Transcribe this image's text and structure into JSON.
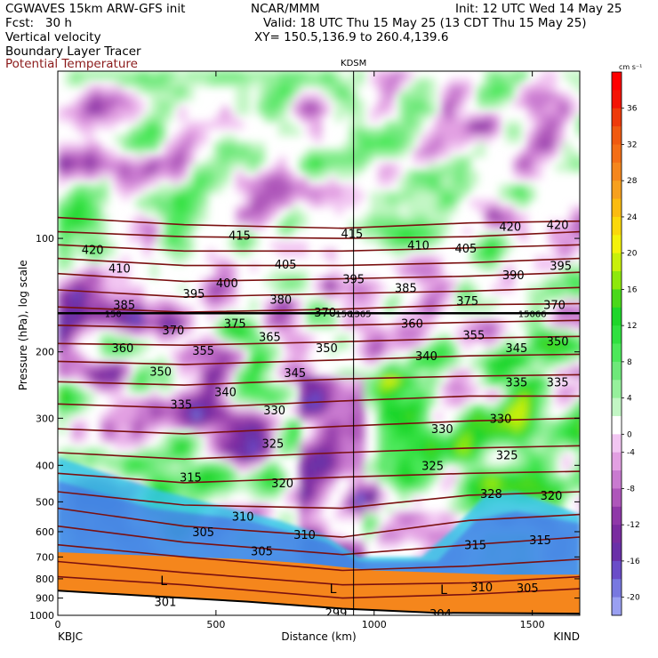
{
  "header": {
    "left1": "CGWAVES 15km ARW-GFS init",
    "center1": "NCAR/MMM",
    "right1": "Init: 12 UTC Wed 14 May 25",
    "left2": "Fcst:   30 h",
    "center2": "Valid: 18 UTC Thu 15 May 25 (13 CDT Thu 15 May 25)",
    "left3": "Vertical velocity",
    "center3": "XY= 150.5,136.9 to 260.4,139.6",
    "left4": "Boundary Layer Tracer",
    "left5": "Potential Temperature"
  },
  "chart_data": {
    "type": "heatmap",
    "title": "",
    "xlabel": "Distance (km)",
    "ylabel": "Pressure (hPa), log scale",
    "xlim": [
      0,
      1650
    ],
    "ylim": [
      1000,
      10
    ],
    "x_ticks": [
      0,
      500,
      1000,
      1500
    ],
    "y_ticks": [
      100,
      200,
      300,
      400,
      500,
      600,
      700,
      800,
      900,
      1000
    ],
    "x_end_labels": {
      "left": "KBJC",
      "right": "KIND"
    },
    "marker": {
      "label": "KDSM",
      "x": 935
    },
    "colorbar": {
      "units": "cm s⁻¹",
      "tick_labels": [
        "36",
        "32",
        "28",
        "24",
        "20",
        "16",
        "12",
        "8",
        "4",
        "0",
        "-4",
        "-8",
        "-12",
        "-16",
        "-20"
      ],
      "bins": [
        {
          "from": 40,
          "to": 38,
          "color": "#ff0000"
        },
        {
          "from": 38,
          "to": 36,
          "color": "#f41406"
        },
        {
          "from": 36,
          "to": 34,
          "color": "#ee3a0a"
        },
        {
          "from": 34,
          "to": 32,
          "color": "#f05a10"
        },
        {
          "from": 32,
          "to": 30,
          "color": "#f46e16"
        },
        {
          "from": 30,
          "to": 28,
          "color": "#f5861c"
        },
        {
          "from": 28,
          "to": 26,
          "color": "#f7a01e"
        },
        {
          "from": 26,
          "to": 24,
          "color": "#fbbb10"
        },
        {
          "from": 24,
          "to": 22,
          "color": "#fbd80a"
        },
        {
          "from": 22,
          "to": 20,
          "color": "#f4f20a"
        },
        {
          "from": 20,
          "to": 18,
          "color": "#c8f00a"
        },
        {
          "from": 18,
          "to": 16,
          "color": "#8ee80c"
        },
        {
          "from": 16,
          "to": 14,
          "color": "#4ad81a"
        },
        {
          "from": 14,
          "to": 12,
          "color": "#1ed62a"
        },
        {
          "from": 12,
          "to": 10,
          "color": "#30e040"
        },
        {
          "from": 10,
          "to": 8,
          "color": "#4ce85a"
        },
        {
          "from": 8,
          "to": 6,
          "color": "#6ee87a"
        },
        {
          "from": 6,
          "to": 4,
          "color": "#96f09c"
        },
        {
          "from": 4,
          "to": 2,
          "color": "#c2f6c4"
        },
        {
          "from": 2,
          "to": -2,
          "color": "#ffffff"
        },
        {
          "from": -2,
          "to": -4,
          "color": "#f2c6f2"
        },
        {
          "from": -4,
          "to": -6,
          "color": "#e2a0e2"
        },
        {
          "from": -6,
          "to": -8,
          "color": "#c97ad0"
        },
        {
          "from": -8,
          "to": -10,
          "color": "#ae56ba"
        },
        {
          "from": -10,
          "to": -12,
          "color": "#8f38a8"
        },
        {
          "from": -12,
          "to": -14,
          "color": "#7a2ca0"
        },
        {
          "from": -14,
          "to": -16,
          "color": "#6a30a8"
        },
        {
          "from": -16,
          "to": -18,
          "color": "#6a4cc8"
        },
        {
          "from": -18,
          "to": -20,
          "color": "#7878e0"
        },
        {
          "from": -20,
          "to": -22,
          "color": "#9aa0f2"
        }
      ]
    },
    "theta_labels": [
      {
        "t": "420",
        "x": 110,
        "p": 107
      },
      {
        "t": "415",
        "x": 575,
        "p": 98
      },
      {
        "t": "415",
        "x": 930,
        "p": 97
      },
      {
        "t": "410",
        "x": 1140,
        "p": 104
      },
      {
        "t": "405",
        "x": 1290,
        "p": 106
      },
      {
        "t": "420",
        "x": 1430,
        "p": 93
      },
      {
        "t": "420",
        "x": 1580,
        "p": 92
      },
      {
        "t": "410",
        "x": 195,
        "p": 120
      },
      {
        "t": "405",
        "x": 720,
        "p": 117
      },
      {
        "t": "395",
        "x": 1590,
        "p": 118
      },
      {
        "t": "390",
        "x": 1440,
        "p": 125
      },
      {
        "t": "395",
        "x": 935,
        "p": 128
      },
      {
        "t": "395",
        "x": 430,
        "p": 140
      },
      {
        "t": "400",
        "x": 535,
        "p": 131
      },
      {
        "t": "385",
        "x": 1100,
        "p": 135
      },
      {
        "t": "380",
        "x": 705,
        "p": 145
      },
      {
        "t": "375",
        "x": 1295,
        "p": 146
      },
      {
        "t": "385",
        "x": 210,
        "p": 150
      },
      {
        "t": "370",
        "x": 845,
        "p": 157
      },
      {
        "t": "370",
        "x": 1570,
        "p": 150
      },
      {
        "t": "375",
        "x": 560,
        "p": 168
      },
      {
        "t": "360",
        "x": 1120,
        "p": 168
      },
      {
        "t": "370",
        "x": 365,
        "p": 175
      },
      {
        "t": "355",
        "x": 1315,
        "p": 180
      },
      {
        "t": "365",
        "x": 670,
        "p": 182
      },
      {
        "t": "350",
        "x": 1580,
        "p": 187
      },
      {
        "t": "345",
        "x": 1450,
        "p": 195
      },
      {
        "t": "360",
        "x": 205,
        "p": 195
      },
      {
        "t": "355",
        "x": 460,
        "p": 198
      },
      {
        "t": "350",
        "x": 850,
        "p": 195
      },
      {
        "t": "340",
        "x": 1165,
        "p": 205
      },
      {
        "t": "350",
        "x": 325,
        "p": 225
      },
      {
        "t": "345",
        "x": 750,
        "p": 227
      },
      {
        "t": "335",
        "x": 1450,
        "p": 240
      },
      {
        "t": "335",
        "x": 1580,
        "p": 240
      },
      {
        "t": "340",
        "x": 530,
        "p": 255
      },
      {
        "t": "335",
        "x": 390,
        "p": 275
      },
      {
        "t": "330",
        "x": 685,
        "p": 285
      },
      {
        "t": "330",
        "x": 1400,
        "p": 300
      },
      {
        "t": "330",
        "x": 1215,
        "p": 320
      },
      {
        "t": "325",
        "x": 680,
        "p": 350
      },
      {
        "t": "325",
        "x": 1420,
        "p": 375
      },
      {
        "t": "325",
        "x": 1185,
        "p": 400
      },
      {
        "t": "320",
        "x": 710,
        "p": 445
      },
      {
        "t": "328",
        "x": 1370,
        "p": 475
      },
      {
        "t": "320",
        "x": 1560,
        "p": 480
      },
      {
        "t": "315",
        "x": 420,
        "p": 430
      },
      {
        "t": "310",
        "x": 585,
        "p": 545
      },
      {
        "t": "310",
        "x": 780,
        "p": 610
      },
      {
        "t": "305",
        "x": 460,
        "p": 600
      },
      {
        "t": "305",
        "x": 645,
        "p": 675
      },
      {
        "t": "315",
        "x": 1320,
        "p": 650
      },
      {
        "t": "315",
        "x": 1525,
        "p": 630
      },
      {
        "t": "310",
        "x": 1340,
        "p": 840
      },
      {
        "t": "305",
        "x": 1485,
        "p": 845
      },
      {
        "t": "301",
        "x": 340,
        "p": 920
      },
      {
        "t": "299",
        "x": 880,
        "p": 985
      },
      {
        "t": "304",
        "x": 1210,
        "p": 990
      }
    ],
    "low_markers": [
      {
        "t": "L",
        "x": 335,
        "p": 810
      },
      {
        "t": "L",
        "x": 870,
        "p": 850
      },
      {
        "t": "L",
        "x": 1220,
        "p": 855
      }
    ],
    "extra_labels": [
      {
        "t": "150",
        "x": 175,
        "p": 158
      },
      {
        "t": "150",
        "x": 905,
        "p": 158
      },
      {
        "t": "15066",
        "x": 1500,
        "p": 158
      },
      {
        "t": "1365",
        "x": 955,
        "p": 158
      }
    ]
  }
}
